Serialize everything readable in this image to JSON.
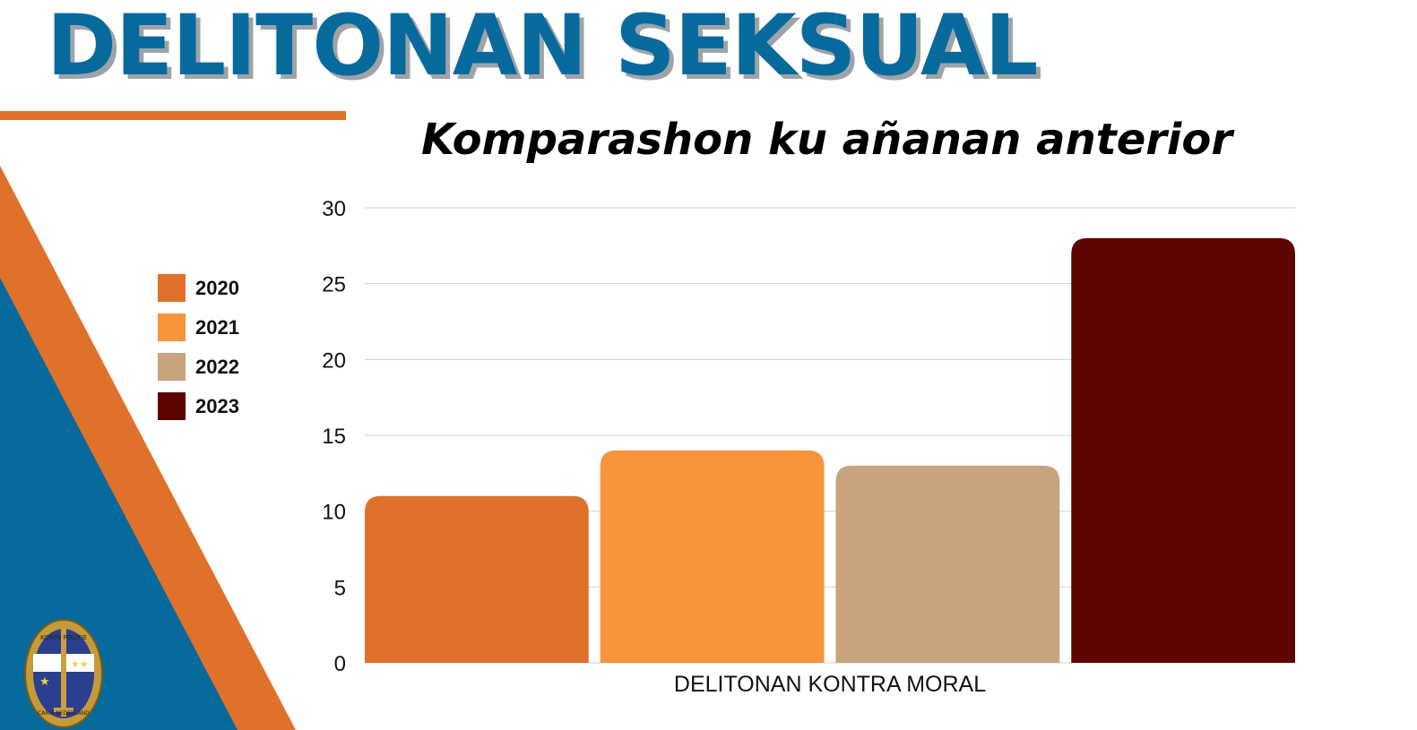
{
  "title": "DELITONAN SEKSUAL",
  "subtitle": "Komparashon ku añanan anterior",
  "colors": {
    "title_blue": "#076a9d",
    "accent_orange": "#e0712a",
    "deco_blue": "#066a9d"
  },
  "logo": {
    "text_top": "KORPS POLITIE",
    "text_bottom": "CARIB NEDERLAND"
  },
  "chart_data": {
    "type": "bar",
    "categories": [
      "DELITONAN KONTRA MORAL"
    ],
    "series": [
      {
        "name": "2020",
        "color": "#e0712a",
        "values": [
          11
        ]
      },
      {
        "name": "2021",
        "color": "#f8943c",
        "values": [
          14
        ]
      },
      {
        "name": "2022",
        "color": "#c7a47e",
        "values": [
          13
        ]
      },
      {
        "name": "2023",
        "color": "#5c0500",
        "values": [
          28
        ]
      }
    ],
    "ylim": [
      0,
      30
    ],
    "yticks": [
      0,
      5,
      10,
      15,
      20,
      25,
      30
    ],
    "grid": true,
    "legend": "left"
  }
}
